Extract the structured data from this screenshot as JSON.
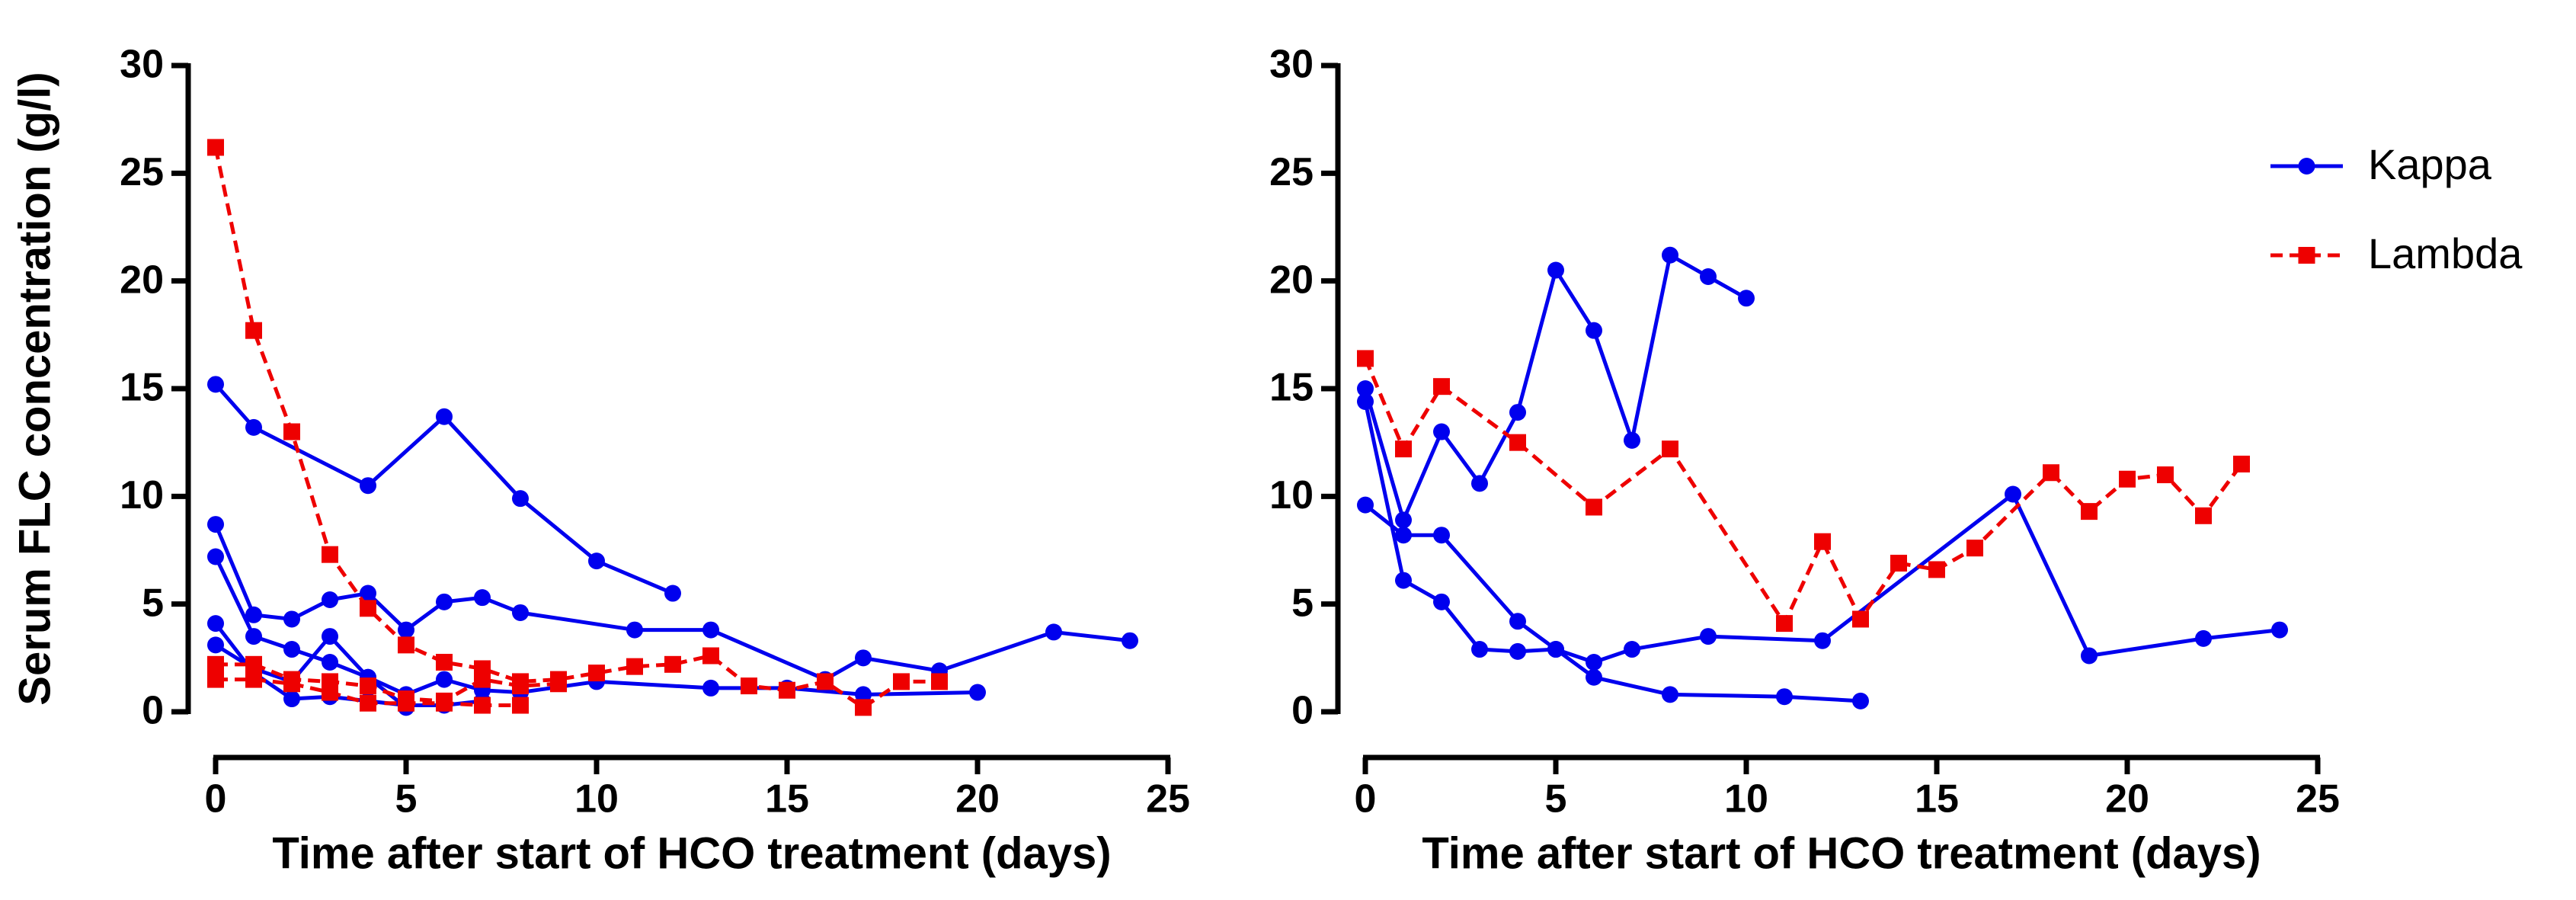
{
  "chart_data": [
    {
      "type": "line",
      "ylabel": "Serum FLC concentration (g/l)",
      "xlabel": "Time after start of HCO treatment (days)",
      "xlim": [
        0,
        25
      ],
      "ylim": [
        0,
        30
      ],
      "xticks": [
        0,
        5,
        10,
        15,
        20,
        25
      ],
      "yticks": [
        0,
        5,
        10,
        15,
        20,
        25,
        30
      ],
      "series": [
        {
          "color": "#0000ee",
          "marker": "circle",
          "linestyle": "solid",
          "lines": [
            {
              "x": [
                0,
                1,
                4,
                6,
                8,
                10,
                12
              ],
              "values": [
                15.2,
                13.2,
                10.5,
                13.7,
                9.9,
                7.0,
                5.5
              ]
            },
            {
              "x": [
                0,
                1,
                2,
                3,
                4,
                5,
                6,
                7,
                8,
                11,
                13,
                16,
                17,
                19,
                22,
                24
              ],
              "values": [
                8.7,
                4.5,
                4.3,
                5.2,
                5.5,
                3.8,
                5.1,
                5.3,
                4.6,
                3.8,
                3.8,
                1.5,
                2.5,
                1.9,
                3.7,
                3.3
              ]
            },
            {
              "x": [
                0,
                1,
                2,
                3,
                4,
                5,
                6,
                7,
                8,
                10,
                13,
                15,
                17,
                20
              ],
              "values": [
                7.2,
                3.5,
                2.9,
                2.3,
                1.6,
                0.8,
                1.5,
                1.0,
                0.9,
                1.4,
                1.1,
                1.1,
                0.8,
                0.9
              ]
            },
            {
              "x": [
                0,
                1,
                2,
                3,
                4,
                5,
                6,
                7
              ],
              "values": [
                4.1,
                1.8,
                0.6,
                0.7,
                0.5,
                0.3,
                0.3,
                0.5
              ]
            },
            {
              "x": [
                0,
                1,
                2,
                3,
                4,
                5
              ],
              "values": [
                3.1,
                2.0,
                1.4,
                3.5,
                1.6,
                0.2
              ]
            }
          ]
        },
        {
          "color": "#ee0000",
          "marker": "square",
          "linestyle": "dashed",
          "lines": [
            {
              "x": [
                0,
                1,
                2,
                3,
                4,
                5,
                6,
                7,
                8,
                9,
                10,
                11,
                12,
                13,
                14,
                15,
                16,
                17,
                18,
                19
              ],
              "values": [
                26.2,
                17.7,
                13.0,
                7.3,
                4.8,
                3.1,
                2.3,
                2.0,
                1.4,
                1.5,
                1.8,
                2.1,
                2.2,
                2.6,
                1.2,
                1.0,
                1.4,
                0.2,
                1.4,
                1.4
              ]
            },
            {
              "x": [
                0,
                1,
                2,
                3,
                4,
                5,
                6,
                7,
                8,
                9
              ],
              "values": [
                2.2,
                2.2,
                1.5,
                1.4,
                1.2,
                0.6,
                0.5,
                1.5,
                1.2,
                1.3
              ]
            },
            {
              "x": [
                0,
                1,
                2,
                3,
                4,
                5,
                6,
                7,
                8
              ],
              "values": [
                1.5,
                1.5,
                1.3,
                0.9,
                0.4,
                0.4,
                0.4,
                0.3,
                0.3
              ]
            }
          ]
        }
      ]
    },
    {
      "type": "line",
      "xlabel": "Time after start of HCO treatment (days)",
      "xlim": [
        0,
        25
      ],
      "ylim": [
        0,
        30
      ],
      "xticks": [
        0,
        5,
        10,
        15,
        20,
        25
      ],
      "yticks": [
        0,
        5,
        10,
        15,
        20,
        25,
        30
      ],
      "legend": "upper right",
      "series": [
        {
          "name": "Kappa",
          "color": "#0000ee",
          "marker": "circle",
          "linestyle": "solid",
          "lines": [
            {
              "x": [
                0,
                1,
                2,
                3,
                4,
                5,
                6,
                7,
                8,
                9,
                10
              ],
              "values": [
                15.0,
                8.9,
                13.0,
                10.6,
                13.9,
                20.5,
                17.7,
                12.6,
                21.2,
                20.2,
                19.2
              ]
            },
            {
              "x": [
                0,
                1,
                2,
                3,
                4,
                5,
                6,
                7,
                9,
                12,
                17,
                19,
                22,
                24
              ],
              "values": [
                14.4,
                6.1,
                5.1,
                2.9,
                2.8,
                2.9,
                2.3,
                2.9,
                3.5,
                3.3,
                10.1,
                2.6,
                3.4,
                3.8
              ]
            },
            {
              "x": [
                0,
                1,
                2,
                4,
                5,
                6,
                8,
                11,
                13
              ],
              "values": [
                9.6,
                8.2,
                8.2,
                4.2,
                2.9,
                1.6,
                0.8,
                0.7,
                0.5
              ]
            }
          ]
        },
        {
          "name": "Lambda",
          "color": "#ee0000",
          "marker": "square",
          "linestyle": "dashed",
          "lines": [
            {
              "x": [
                0,
                1,
                2,
                4,
                6,
                8,
                11,
                12,
                13,
                14,
                15,
                16,
                18,
                19,
                20,
                21,
                22,
                23
              ],
              "values": [
                16.4,
                12.2,
                15.1,
                12.5,
                9.5,
                12.2,
                4.1,
                7.9,
                4.3,
                6.9,
                6.6,
                7.6,
                11.1,
                9.3,
                10.8,
                11.0,
                9.1,
                11.5
              ]
            }
          ]
        }
      ]
    }
  ]
}
